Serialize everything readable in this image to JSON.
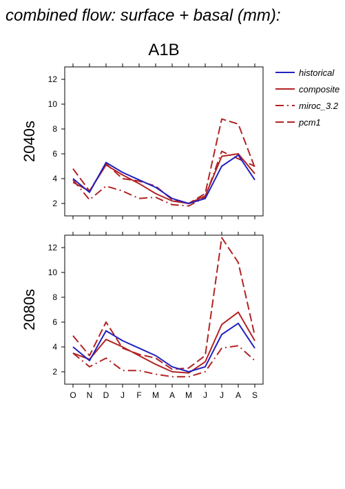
{
  "figure": {
    "title": "combined flow: surface + basal (mm):",
    "scenario": "A1B"
  },
  "colors": {
    "historical": "#2020c0",
    "composite": "#b22222",
    "miroc_3.2": "#b22222",
    "pcm1": "#b22222"
  },
  "chart_data": [
    {
      "type": "line",
      "row_label": "2040s",
      "categories": [
        "O",
        "N",
        "D",
        "J",
        "F",
        "M",
        "A",
        "M",
        "J",
        "J",
        "A",
        "S"
      ],
      "ylim": [
        1,
        13
      ],
      "yticks": [
        2,
        4,
        6,
        8,
        10,
        12
      ],
      "show_xtick_labels": false,
      "series": [
        {
          "name": "historical",
          "style": "solid",
          "values": [
            4.0,
            2.9,
            5.3,
            4.5,
            3.9,
            3.3,
            2.4,
            2.0,
            2.4,
            5.0,
            5.9,
            3.9
          ]
        },
        {
          "name": "composite",
          "style": "solid",
          "values": [
            3.7,
            3.0,
            5.1,
            4.3,
            3.6,
            2.8,
            2.2,
            2.0,
            2.6,
            5.8,
            6.0,
            4.4
          ]
        },
        {
          "name": "miroc_3.2",
          "style": "dashdot",
          "values": [
            3.9,
            2.3,
            3.4,
            3.0,
            2.4,
            2.5,
            1.9,
            1.8,
            2.5,
            6.2,
            5.6,
            5.0
          ]
        },
        {
          "name": "pcm1",
          "style": "dashed",
          "values": [
            4.8,
            3.0,
            5.2,
            4.0,
            3.8,
            3.4,
            2.3,
            2.0,
            2.8,
            8.8,
            8.4,
            4.9
          ]
        }
      ]
    },
    {
      "type": "line",
      "row_label": "2080s",
      "categories": [
        "O",
        "N",
        "D",
        "J",
        "F",
        "M",
        "A",
        "M",
        "J",
        "J",
        "A",
        "S"
      ],
      "ylim": [
        1,
        13
      ],
      "yticks": [
        2,
        4,
        6,
        8,
        10,
        12
      ],
      "show_xtick_labels": true,
      "series": [
        {
          "name": "historical",
          "style": "solid",
          "values": [
            4.0,
            2.9,
            5.3,
            4.5,
            3.9,
            3.3,
            2.4,
            2.0,
            2.4,
            5.0,
            5.9,
            3.9
          ]
        },
        {
          "name": "composite",
          "style": "solid",
          "values": [
            3.5,
            3.0,
            4.6,
            4.0,
            3.3,
            2.6,
            2.0,
            1.9,
            2.8,
            5.8,
            6.8,
            4.5
          ]
        },
        {
          "name": "miroc_3.2",
          "style": "dashdot",
          "values": [
            3.5,
            2.4,
            3.1,
            2.1,
            2.1,
            1.8,
            1.6,
            1.6,
            2.0,
            3.9,
            4.1,
            2.9
          ]
        },
        {
          "name": "pcm1",
          "style": "dashed",
          "values": [
            4.9,
            3.3,
            6.0,
            3.9,
            3.4,
            3.1,
            2.2,
            2.3,
            3.3,
            12.8,
            10.8,
            4.9
          ]
        }
      ]
    }
  ],
  "legend": {
    "placement": "top-right",
    "items": [
      {
        "label": "historical",
        "style": "solid",
        "color_key": "historical"
      },
      {
        "label": "composite",
        "style": "solid",
        "color_key": "composite"
      },
      {
        "label": "miroc_3.2",
        "style": "dashdot",
        "color_key": "miroc_3.2"
      },
      {
        "label": "pcm1",
        "style": "dashed",
        "color_key": "pcm1"
      }
    ]
  }
}
